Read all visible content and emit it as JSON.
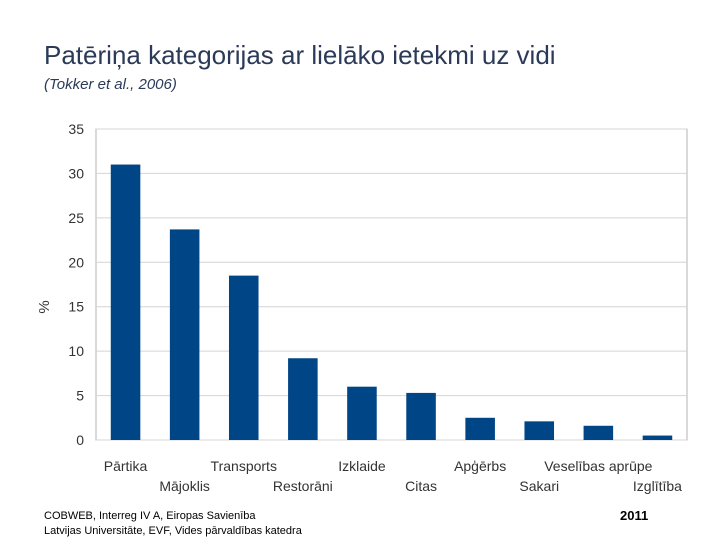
{
  "page": {
    "title": "Patēriņa kategorijas ar lielāko ietekmi uz vidi",
    "subtitle": "(Tokker et al., 2006)"
  },
  "chart_data": {
    "type": "bar",
    "title": "",
    "xlabel": "",
    "ylabel": "%",
    "ylim": [
      0,
      35
    ],
    "yticks": [
      0,
      5,
      10,
      15,
      20,
      25,
      30,
      35
    ],
    "grid": true,
    "legend": "none",
    "bar_color": "#004586",
    "categories": [
      "Pārtika",
      "Mājoklis",
      "Transports",
      "Restorāni",
      "Izklaide",
      "Citas",
      "Apģērbs",
      "Sakari",
      "Veselības aprūpe",
      "Izglītība"
    ],
    "values": [
      31,
      23.7,
      18.5,
      9.2,
      6,
      5.3,
      2.5,
      2.1,
      1.6,
      0.5
    ]
  },
  "footer": {
    "line1": "COBWEB, Interreg IV A, Eiropas Savienība",
    "line2": "Latvijas Universitāte, EVF, Vides pārvaldības katedra",
    "year": "2011"
  }
}
